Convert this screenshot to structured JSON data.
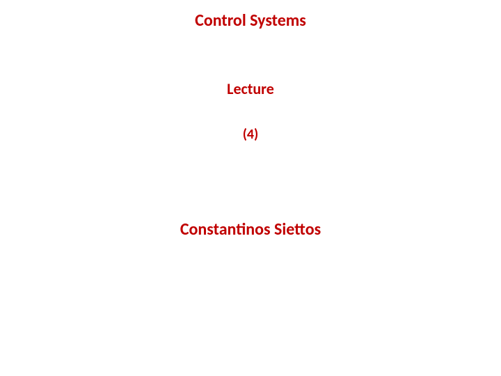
{
  "slide": {
    "title": "Control Systems",
    "subtitle": "Lecture",
    "number": "(4)",
    "author": "Constantinos Siettos",
    "text_color": "#c00000",
    "background_color": "#ffffff",
    "title_fontsize": 24,
    "subtitle_fontsize": 22,
    "number_fontsize": 20,
    "author_fontsize": 24,
    "font_weight": "bold",
    "font_family": "Calibri"
  }
}
